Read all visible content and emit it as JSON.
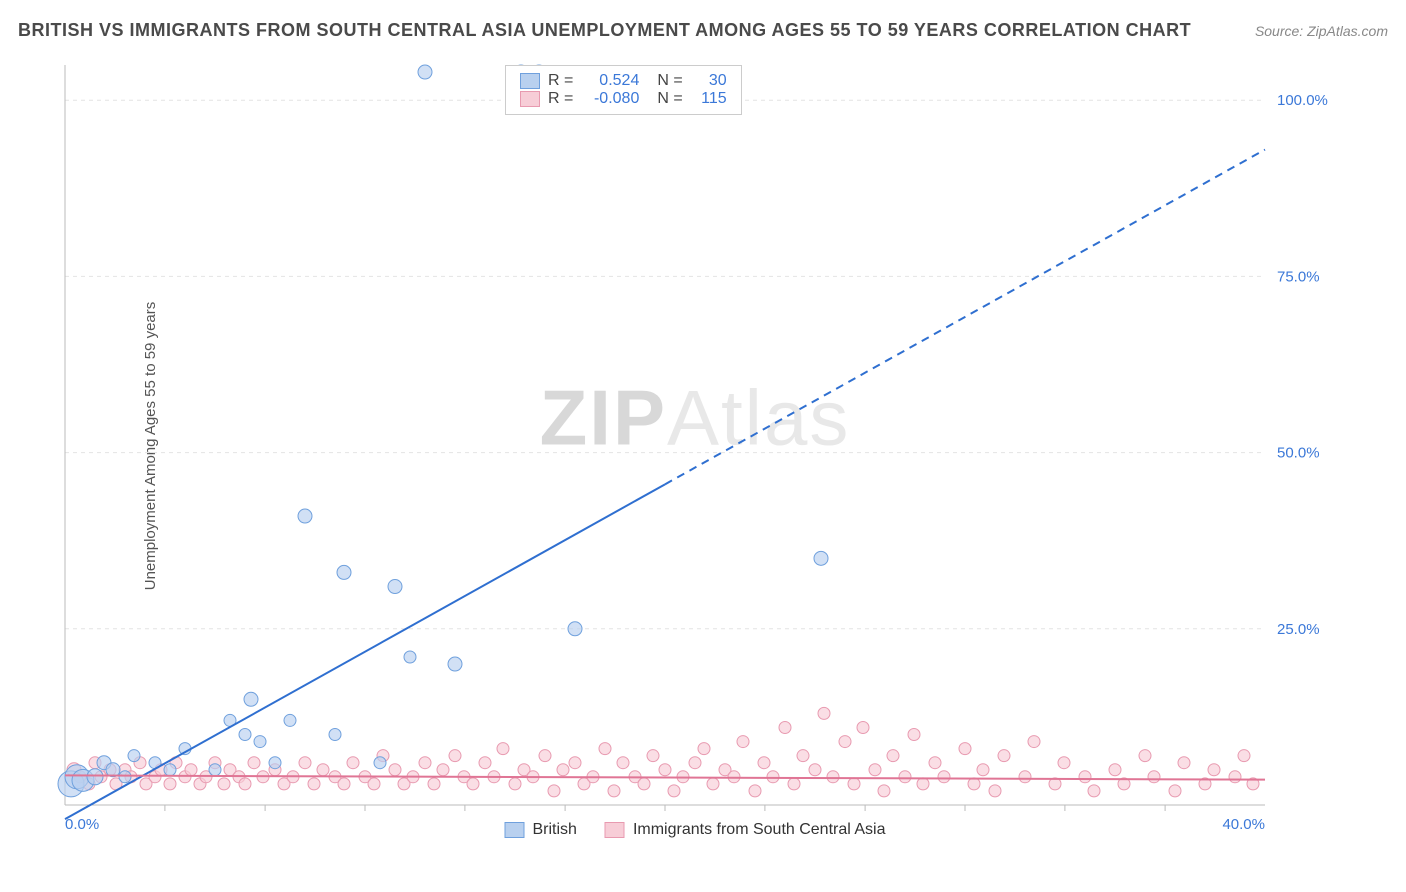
{
  "title": "BRITISH VS IMMIGRANTS FROM SOUTH CENTRAL ASIA UNEMPLOYMENT AMONG AGES 55 TO 59 YEARS CORRELATION CHART",
  "source": "Source: ZipAtlas.com",
  "y_axis_label": "Unemployment Among Ages 55 to 59 years",
  "watermark_a": "ZIP",
  "watermark_b": "Atlas",
  "chart": {
    "type": "scatter",
    "xlim": [
      0,
      40
    ],
    "ylim": [
      0,
      105
    ],
    "x_ticks": [
      0,
      40
    ],
    "x_tick_labels": [
      "0.0%",
      "40.0%"
    ],
    "y_ticks": [
      25,
      50,
      75,
      100
    ],
    "y_tick_labels": [
      "25.0%",
      "50.0%",
      "75.0%",
      "100.0%"
    ],
    "x_minor_ticks": [
      3.33,
      6.67,
      10,
      13.33,
      16.67,
      20,
      23.33,
      26.67,
      30,
      33.33,
      36.67
    ],
    "background_color": "#ffffff",
    "grid_color": "#e4e4e4",
    "axis_color": "#bbbbbb",
    "tick_label_color": "#3b78d8",
    "tick_label_fontsize": 15,
    "series": [
      {
        "name": "British",
        "marker_color_fill": "#b8d0ef",
        "marker_color_stroke": "#6fa0dd",
        "trend_color": "#2f6fd0",
        "trend_width": 2,
        "trend_dash_after_x": 20,
        "trend": {
          "x1": 0,
          "y1": -2,
          "x2": 40,
          "y2": 93
        },
        "r": 0.524,
        "n": 30,
        "points": [
          {
            "x": 0.2,
            "y": 3,
            "r": 13
          },
          {
            "x": 0.4,
            "y": 4,
            "r": 12
          },
          {
            "x": 0.6,
            "y": 3.5,
            "r": 11
          },
          {
            "x": 1,
            "y": 4,
            "r": 8
          },
          {
            "x": 1.3,
            "y": 6,
            "r": 7
          },
          {
            "x": 1.6,
            "y": 5,
            "r": 7
          },
          {
            "x": 2,
            "y": 4,
            "r": 6
          },
          {
            "x": 2.3,
            "y": 7,
            "r": 6
          },
          {
            "x": 3,
            "y": 6,
            "r": 6
          },
          {
            "x": 3.5,
            "y": 5,
            "r": 6
          },
          {
            "x": 4,
            "y": 8,
            "r": 6
          },
          {
            "x": 5,
            "y": 5,
            "r": 6
          },
          {
            "x": 5.5,
            "y": 12,
            "r": 6
          },
          {
            "x": 6,
            "y": 10,
            "r": 6
          },
          {
            "x": 6.2,
            "y": 15,
            "r": 7
          },
          {
            "x": 6.5,
            "y": 9,
            "r": 6
          },
          {
            "x": 7,
            "y": 6,
            "r": 6
          },
          {
            "x": 7.5,
            "y": 12,
            "r": 6
          },
          {
            "x": 8,
            "y": 41,
            "r": 7
          },
          {
            "x": 9,
            "y": 10,
            "r": 6
          },
          {
            "x": 9.3,
            "y": 33,
            "r": 7
          },
          {
            "x": 10.5,
            "y": 6,
            "r": 6
          },
          {
            "x": 11,
            "y": 31,
            "r": 7
          },
          {
            "x": 11.5,
            "y": 21,
            "r": 6
          },
          {
            "x": 12,
            "y": 104,
            "r": 7
          },
          {
            "x": 13,
            "y": 20,
            "r": 7
          },
          {
            "x": 15.2,
            "y": 104,
            "r": 7
          },
          {
            "x": 15.8,
            "y": 104,
            "r": 7
          },
          {
            "x": 17,
            "y": 25,
            "r": 7
          },
          {
            "x": 25.2,
            "y": 35,
            "r": 7
          }
        ]
      },
      {
        "name": "Immigrants from South Central Asia",
        "marker_color_fill": "#f7cdd7",
        "marker_color_stroke": "#e89ab0",
        "trend_color": "#e07595",
        "trend_width": 2,
        "trend": {
          "x1": 0,
          "y1": 4.2,
          "x2": 40,
          "y2": 3.6
        },
        "r": -0.08,
        "n": 115,
        "points": [
          {
            "x": 0.3,
            "y": 5,
            "r": 7
          },
          {
            "x": 0.5,
            "y": 4,
            "r": 6
          },
          {
            "x": 0.8,
            "y": 3,
            "r": 6
          },
          {
            "x": 1,
            "y": 6,
            "r": 6
          },
          {
            "x": 1.2,
            "y": 4,
            "r": 6
          },
          {
            "x": 1.5,
            "y": 5,
            "r": 6
          },
          {
            "x": 1.7,
            "y": 3,
            "r": 6
          },
          {
            "x": 2,
            "y": 5,
            "r": 6
          },
          {
            "x": 2.2,
            "y": 4,
            "r": 6
          },
          {
            "x": 2.5,
            "y": 6,
            "r": 6
          },
          {
            "x": 2.7,
            "y": 3,
            "r": 6
          },
          {
            "x": 3,
            "y": 4,
            "r": 6
          },
          {
            "x": 3.2,
            "y": 5,
            "r": 6
          },
          {
            "x": 3.5,
            "y": 3,
            "r": 6
          },
          {
            "x": 3.7,
            "y": 6,
            "r": 6
          },
          {
            "x": 4,
            "y": 4,
            "r": 6
          },
          {
            "x": 4.2,
            "y": 5,
            "r": 6
          },
          {
            "x": 4.5,
            "y": 3,
            "r": 6
          },
          {
            "x": 4.7,
            "y": 4,
            "r": 6
          },
          {
            "x": 5,
            "y": 6,
            "r": 6
          },
          {
            "x": 5.3,
            "y": 3,
            "r": 6
          },
          {
            "x": 5.5,
            "y": 5,
            "r": 6
          },
          {
            "x": 5.8,
            "y": 4,
            "r": 6
          },
          {
            "x": 6,
            "y": 3,
            "r": 6
          },
          {
            "x": 6.3,
            "y": 6,
            "r": 6
          },
          {
            "x": 6.6,
            "y": 4,
            "r": 6
          },
          {
            "x": 7,
            "y": 5,
            "r": 6
          },
          {
            "x": 7.3,
            "y": 3,
            "r": 6
          },
          {
            "x": 7.6,
            "y": 4,
            "r": 6
          },
          {
            "x": 8,
            "y": 6,
            "r": 6
          },
          {
            "x": 8.3,
            "y": 3,
            "r": 6
          },
          {
            "x": 8.6,
            "y": 5,
            "r": 6
          },
          {
            "x": 9,
            "y": 4,
            "r": 6
          },
          {
            "x": 9.3,
            "y": 3,
            "r": 6
          },
          {
            "x": 9.6,
            "y": 6,
            "r": 6
          },
          {
            "x": 10,
            "y": 4,
            "r": 6
          },
          {
            "x": 10.3,
            "y": 3,
            "r": 6
          },
          {
            "x": 10.6,
            "y": 7,
            "r": 6
          },
          {
            "x": 11,
            "y": 5,
            "r": 6
          },
          {
            "x": 11.3,
            "y": 3,
            "r": 6
          },
          {
            "x": 11.6,
            "y": 4,
            "r": 6
          },
          {
            "x": 12,
            "y": 6,
            "r": 6
          },
          {
            "x": 12.3,
            "y": 3,
            "r": 6
          },
          {
            "x": 12.6,
            "y": 5,
            "r": 6
          },
          {
            "x": 13,
            "y": 7,
            "r": 6
          },
          {
            "x": 13.3,
            "y": 4,
            "r": 6
          },
          {
            "x": 13.6,
            "y": 3,
            "r": 6
          },
          {
            "x": 14,
            "y": 6,
            "r": 6
          },
          {
            "x": 14.3,
            "y": 4,
            "r": 6
          },
          {
            "x": 14.6,
            "y": 8,
            "r": 6
          },
          {
            "x": 15,
            "y": 3,
            "r": 6
          },
          {
            "x": 15.3,
            "y": 5,
            "r": 6
          },
          {
            "x": 15.6,
            "y": 4,
            "r": 6
          },
          {
            "x": 16,
            "y": 7,
            "r": 6
          },
          {
            "x": 16.3,
            "y": 2,
            "r": 6
          },
          {
            "x": 16.6,
            "y": 5,
            "r": 6
          },
          {
            "x": 17,
            "y": 6,
            "r": 6
          },
          {
            "x": 17.3,
            "y": 3,
            "r": 6
          },
          {
            "x": 17.6,
            "y": 4,
            "r": 6
          },
          {
            "x": 18,
            "y": 8,
            "r": 6
          },
          {
            "x": 18.3,
            "y": 2,
            "r": 6
          },
          {
            "x": 18.6,
            "y": 6,
            "r": 6
          },
          {
            "x": 19,
            "y": 4,
            "r": 6
          },
          {
            "x": 19.3,
            "y": 3,
            "r": 6
          },
          {
            "x": 19.6,
            "y": 7,
            "r": 6
          },
          {
            "x": 20,
            "y": 5,
            "r": 6
          },
          {
            "x": 20.3,
            "y": 2,
            "r": 6
          },
          {
            "x": 20.6,
            "y": 4,
            "r": 6
          },
          {
            "x": 21,
            "y": 6,
            "r": 6
          },
          {
            "x": 21.3,
            "y": 8,
            "r": 6
          },
          {
            "x": 21.6,
            "y": 3,
            "r": 6
          },
          {
            "x": 22,
            "y": 5,
            "r": 6
          },
          {
            "x": 22.3,
            "y": 4,
            "r": 6
          },
          {
            "x": 22.6,
            "y": 9,
            "r": 6
          },
          {
            "x": 23,
            "y": 2,
            "r": 6
          },
          {
            "x": 23.3,
            "y": 6,
            "r": 6
          },
          {
            "x": 23.6,
            "y": 4,
            "r": 6
          },
          {
            "x": 24,
            "y": 11,
            "r": 6
          },
          {
            "x": 24.3,
            "y": 3,
            "r": 6
          },
          {
            "x": 24.6,
            "y": 7,
            "r": 6
          },
          {
            "x": 25,
            "y": 5,
            "r": 6
          },
          {
            "x": 25.3,
            "y": 13,
            "r": 6
          },
          {
            "x": 25.6,
            "y": 4,
            "r": 6
          },
          {
            "x": 26,
            "y": 9,
            "r": 6
          },
          {
            "x": 26.3,
            "y": 3,
            "r": 6
          },
          {
            "x": 26.6,
            "y": 11,
            "r": 6
          },
          {
            "x": 27,
            "y": 5,
            "r": 6
          },
          {
            "x": 27.3,
            "y": 2,
            "r": 6
          },
          {
            "x": 27.6,
            "y": 7,
            "r": 6
          },
          {
            "x": 28,
            "y": 4,
            "r": 6
          },
          {
            "x": 28.3,
            "y": 10,
            "r": 6
          },
          {
            "x": 28.6,
            "y": 3,
            "r": 6
          },
          {
            "x": 29,
            "y": 6,
            "r": 6
          },
          {
            "x": 29.3,
            "y": 4,
            "r": 6
          },
          {
            "x": 30,
            "y": 8,
            "r": 6
          },
          {
            "x": 30.3,
            "y": 3,
            "r": 6
          },
          {
            "x": 30.6,
            "y": 5,
            "r": 6
          },
          {
            "x": 31,
            "y": 2,
            "r": 6
          },
          {
            "x": 31.3,
            "y": 7,
            "r": 6
          },
          {
            "x": 32,
            "y": 4,
            "r": 6
          },
          {
            "x": 32.3,
            "y": 9,
            "r": 6
          },
          {
            "x": 33,
            "y": 3,
            "r": 6
          },
          {
            "x": 33.3,
            "y": 6,
            "r": 6
          },
          {
            "x": 34,
            "y": 4,
            "r": 6
          },
          {
            "x": 34.3,
            "y": 2,
            "r": 6
          },
          {
            "x": 35,
            "y": 5,
            "r": 6
          },
          {
            "x": 35.3,
            "y": 3,
            "r": 6
          },
          {
            "x": 36,
            "y": 7,
            "r": 6
          },
          {
            "x": 36.3,
            "y": 4,
            "r": 6
          },
          {
            "x": 37,
            "y": 2,
            "r": 6
          },
          {
            "x": 37.3,
            "y": 6,
            "r": 6
          },
          {
            "x": 38,
            "y": 3,
            "r": 6
          },
          {
            "x": 38.3,
            "y": 5,
            "r": 6
          },
          {
            "x": 39,
            "y": 4,
            "r": 6
          },
          {
            "x": 39.3,
            "y": 7,
            "r": 6
          },
          {
            "x": 39.6,
            "y": 3,
            "r": 6
          }
        ]
      }
    ]
  },
  "stat_box": {
    "r_label": "R =",
    "n_label": "N =",
    "rows": [
      {
        "swatch_fill": "#b8d0ef",
        "swatch_border": "#6fa0dd",
        "r": "0.524",
        "n": "30",
        "r_color": "#3b78d8",
        "n_color": "#3b78d8"
      },
      {
        "swatch_fill": "#f7cdd7",
        "swatch_border": "#e89ab0",
        "r": "-0.080",
        "n": "115",
        "r_color": "#3b78d8",
        "n_color": "#3b78d8"
      }
    ]
  },
  "bottom_legend": [
    {
      "swatch_fill": "#b8d0ef",
      "swatch_border": "#6fa0dd",
      "label": "British"
    },
    {
      "swatch_fill": "#f7cdd7",
      "swatch_border": "#e89ab0",
      "label": "Immigrants from South Central Asia"
    }
  ]
}
